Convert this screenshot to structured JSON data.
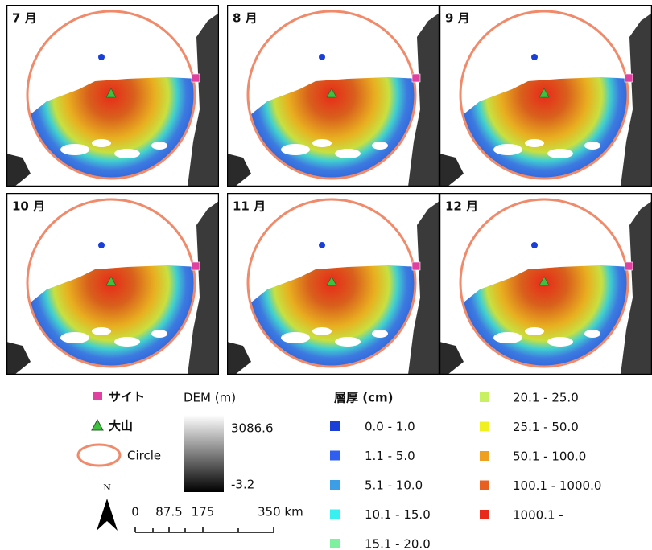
{
  "panels": [
    {
      "label": "7 月"
    },
    {
      "label": "8 月"
    },
    {
      "label": "9 月"
    },
    {
      "label": "10 月"
    },
    {
      "label": "11 月"
    },
    {
      "label": "12 月"
    }
  ],
  "legend": {
    "site": "サイト",
    "peak": "大山",
    "circle": "Circle",
    "north": "N",
    "scale": {
      "ticks": [
        "0",
        "87.5",
        "175"
      ],
      "end": "350 km"
    },
    "dem": {
      "title": "DEM (m)",
      "max": "3086.6",
      "min": "-3.2"
    },
    "thickness": {
      "title": "層厚 (cm)",
      "classes": [
        {
          "label": "0.0 - 1.0",
          "color": "#1a3fd8"
        },
        {
          "label": "1.1 - 5.0",
          "color": "#2f5ef0"
        },
        {
          "label": "5.1 - 10.0",
          "color": "#3d9ee8"
        },
        {
          "label": "10.1 - 15.0",
          "color": "#38f0f0"
        },
        {
          "label": "15.1 - 20.0",
          "color": "#7ff0a0"
        },
        {
          "label": "20.1 - 25.0",
          "color": "#c8f060"
        },
        {
          "label": "25.1 - 50.0",
          "color": "#f0f020"
        },
        {
          "label": "50.1 - 100.0",
          "color": "#f0a020"
        },
        {
          "label": "100.1 - 1000.0",
          "color": "#e86020"
        },
        {
          "label": "1000.1 -",
          "color": "#e82a1a"
        }
      ]
    }
  }
}
